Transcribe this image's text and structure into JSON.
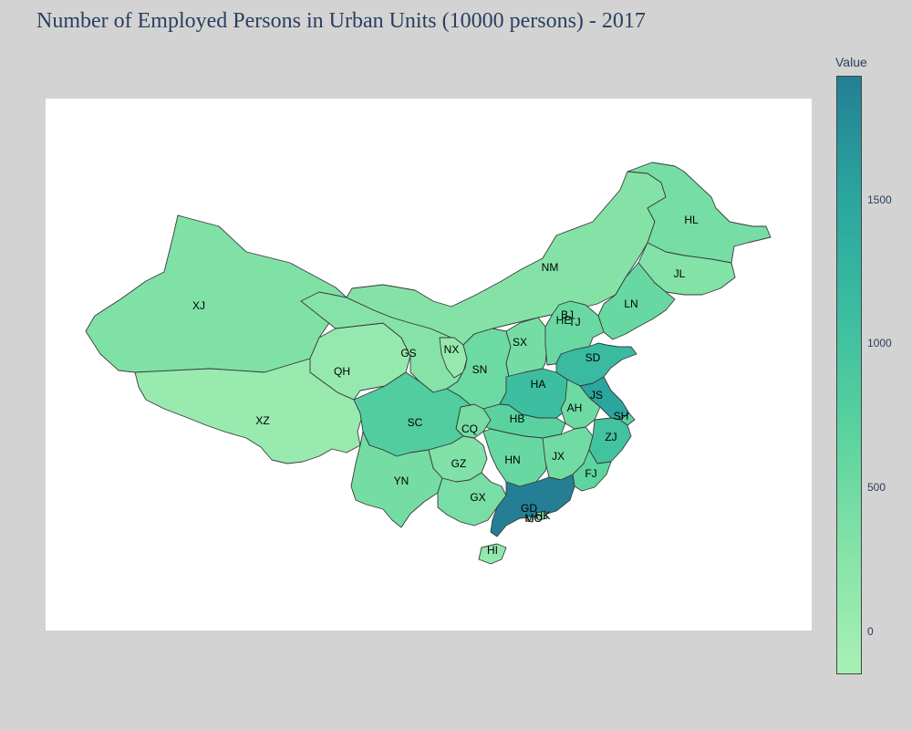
{
  "title": "Number of Employed Persons in Urban Units (10000 persons) - 2017",
  "colorbar": {
    "title": "Value",
    "ticks": [
      "0",
      "500",
      "1000",
      "1500"
    ],
    "min": -150,
    "max": 1930,
    "colors": [
      "#a8f0b4",
      "#86e3a8",
      "#5bd39f",
      "#3cbda0",
      "#2aa59e",
      "#247f95"
    ]
  },
  "chart_data": {
    "type": "choropleth",
    "regions": [
      {
        "code": "XJ",
        "value": 320
      },
      {
        "code": "XZ",
        "value": 40
      },
      {
        "code": "QH",
        "value": 65
      },
      {
        "code": "GS",
        "value": 260
      },
      {
        "code": "NM",
        "value": 290
      },
      {
        "code": "NX",
        "value": 70
      },
      {
        "code": "SN",
        "value": 510
      },
      {
        "code": "SX",
        "value": 430
      },
      {
        "code": "HL",
        "value": 420
      },
      {
        "code": "JL",
        "value": 300
      },
      {
        "code": "LN",
        "value": 560
      },
      {
        "code": "BJ",
        "value": 800
      },
      {
        "code": "TJ",
        "value": 290
      },
      {
        "code": "HE",
        "value": 540
      },
      {
        "code": "SD",
        "value": 1150
      },
      {
        "code": "HA",
        "value": 1080
      },
      {
        "code": "JS",
        "value": 1490
      },
      {
        "code": "SH",
        "value": 680
      },
      {
        "code": "AH",
        "value": 500
      },
      {
        "code": "HB",
        "value": 700
      },
      {
        "code": "CQ",
        "value": 410
      },
      {
        "code": "SC",
        "value": 800
      },
      {
        "code": "GZ",
        "value": 310
      },
      {
        "code": "HN",
        "value": 560
      },
      {
        "code": "JX",
        "value": 480
      },
      {
        "code": "ZJ",
        "value": 1000
      },
      {
        "code": "FJ",
        "value": 650
      },
      {
        "code": "YN",
        "value": 430
      },
      {
        "code": "GX",
        "value": 400
      },
      {
        "code": "GD",
        "value": 1940
      },
      {
        "code": "HK",
        "value": 380
      },
      {
        "code": "MO",
        "value": 40
      },
      {
        "code": "HI",
        "value": 100
      }
    ]
  }
}
